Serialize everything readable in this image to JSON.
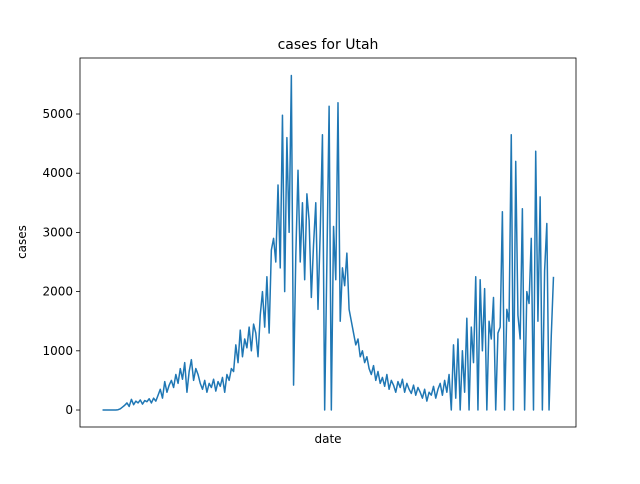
{
  "chart_data": {
    "type": "line",
    "title": "cases for Utah",
    "x_label": "date",
    "y_label": "cases",
    "color": "#1f77b4",
    "ylim": [
      -287,
      5946
    ],
    "yticks": [
      0,
      1000,
      2000,
      3000,
      4000,
      5000
    ],
    "values": [
      0,
      0,
      0,
      0,
      0,
      0,
      0,
      5,
      20,
      50,
      80,
      120,
      60,
      180,
      90,
      150,
      120,
      170,
      100,
      160,
      140,
      190,
      120,
      200,
      150,
      250,
      350,
      200,
      480,
      300,
      420,
      500,
      380,
      600,
      450,
      700,
      520,
      800,
      300,
      650,
      850,
      500,
      700,
      600,
      450,
      350,
      500,
      300,
      450,
      380,
      520,
      320,
      480,
      400,
      550,
      300,
      600,
      500,
      700,
      650,
      1100,
      800,
      1350,
      900,
      1200,
      1050,
      1400,
      1000,
      1450,
      1300,
      900,
      1600,
      2000,
      1400,
      2250,
      1300,
      2700,
      2900,
      2500,
      3800,
      2400,
      4980,
      2000,
      4600,
      3000,
      5650,
      420,
      2600,
      4050,
      2500,
      3500,
      2200,
      3650,
      3200,
      1900,
      2800,
      3500,
      1700,
      3000,
      4650,
      0,
      2500,
      5130,
      0,
      3100,
      2200,
      5190,
      1500,
      2400,
      2100,
      2650,
      1700,
      1500,
      1300,
      1100,
      1200,
      900,
      1000,
      800,
      900,
      700,
      600,
      750,
      500,
      650,
      450,
      550,
      400,
      600,
      350,
      500,
      420,
      300,
      480,
      380,
      520,
      300,
      450,
      350,
      280,
      420,
      250,
      380,
      300,
      200,
      350,
      150,
      300,
      250,
      400,
      200,
      350,
      450,
      250,
      500,
      300,
      600,
      0,
      1100,
      200,
      1200,
      0,
      1000,
      300,
      1550,
      0,
      1400,
      800,
      2250,
      0,
      2200,
      1000,
      2050,
      0,
      1500,
      1200,
      1900,
      0,
      1300,
      1400,
      3350,
      0,
      1700,
      1500,
      4650,
      0,
      4200,
      1600,
      1200,
      3400,
      0,
      2000,
      1800,
      2900,
      0,
      4370,
      1500,
      3600,
      0,
      2350,
      3150,
      0,
      1250,
      2250
    ]
  }
}
